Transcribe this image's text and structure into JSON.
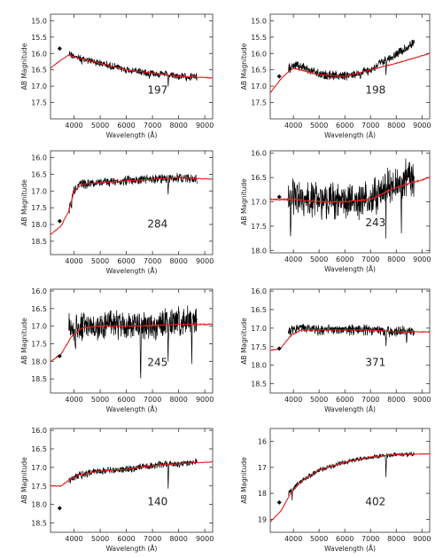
{
  "figure": {
    "panel_count": 8,
    "colors": {
      "data_line": "#000000",
      "model_line": "#e02020",
      "axes": "#333333",
      "photometry_point": "#000000"
    }
  },
  "chart_data": [
    {
      "type": "line",
      "id_label": "197",
      "xlabel": "Wavelength (Å)",
      "ylabel": "AB Magnitude",
      "xlim": [
        3100,
        9300
      ],
      "ylim": [
        18.0,
        14.8
      ],
      "xticks": [
        4000,
        5000,
        6000,
        7000,
        8000,
        9000
      ],
      "yticks": [
        15.0,
        15.5,
        16.0,
        16.5,
        17.0,
        17.5
      ],
      "ytick_labels": [
        "15.0",
        "15.5",
        "16.0",
        "16.5",
        "17.0",
        "17.5"
      ],
      "series": [
        {
          "role": "spectrum",
          "range": [
            3800,
            8700
          ],
          "x": [
            3800,
            4200,
            5000,
            6000,
            7000,
            8000,
            8700
          ],
          "y": [
            16.0,
            16.15,
            16.3,
            16.5,
            16.6,
            16.7,
            16.72
          ],
          "noise": 0.1,
          "dips": [
            [
              7600,
              0.35
            ],
            [
              6870,
              0.15
            ],
            [
              4300,
              0.15
            ]
          ]
        },
        {
          "role": "model",
          "range": [
            3100,
            9300
          ],
          "x": [
            3100,
            3500,
            3800,
            4200,
            5000,
            6000,
            7000,
            8000,
            9300
          ],
          "y": [
            16.45,
            16.2,
            16.05,
            16.15,
            16.3,
            16.5,
            16.6,
            16.7,
            16.75
          ],
          "noise": 0.01
        },
        {
          "role": "photometry",
          "x": [
            3450
          ],
          "y": [
            15.85
          ]
        }
      ]
    },
    {
      "type": "line",
      "id_label": "198",
      "xlabel": "Wavelength (Å)",
      "ylabel": "AB Magnitude",
      "xlim": [
        3100,
        9300
      ],
      "ylim": [
        18.0,
        14.8
      ],
      "xticks": [
        4000,
        5000,
        6000,
        7000,
        8000,
        9000
      ],
      "yticks": [
        15.0,
        15.5,
        16.0,
        16.5,
        17.0,
        17.5
      ],
      "ytick_labels": [
        "15.0",
        "15.5",
        "16.0",
        "16.5",
        "17.0",
        "17.5"
      ],
      "series": [
        {
          "role": "spectrum",
          "range": [
            3800,
            8700
          ],
          "x": [
            3800,
            4200,
            5000,
            6000,
            7000,
            7500,
            8000,
            8700
          ],
          "y": [
            16.45,
            16.35,
            16.65,
            16.7,
            16.5,
            16.25,
            16.0,
            15.7
          ],
          "noise": 0.12,
          "dips": [
            [
              7600,
              0.4
            ],
            [
              6600,
              0.2
            ],
            [
              4200,
              0.2
            ]
          ]
        },
        {
          "role": "model",
          "range": [
            3100,
            9300
          ],
          "x": [
            3100,
            3600,
            4000,
            5000,
            6000,
            7000,
            8000,
            9300
          ],
          "y": [
            17.2,
            16.7,
            16.45,
            16.65,
            16.7,
            16.5,
            16.3,
            16.0
          ],
          "noise": 0.01
        },
        {
          "role": "photometry",
          "x": [
            3450
          ],
          "y": [
            16.7
          ]
        }
      ]
    },
    {
      "type": "line",
      "id_label": "284",
      "xlabel": "Wavelength (Å)",
      "ylabel": "AB Magnitude",
      "xlim": [
        3100,
        9300
      ],
      "ylim": [
        18.9,
        15.8
      ],
      "xticks": [
        4000,
        5000,
        6000,
        7000,
        8000,
        9000
      ],
      "yticks": [
        16.0,
        16.5,
        17.0,
        17.5,
        18.0,
        18.5
      ],
      "ytick_labels": [
        "16.0",
        "16.5",
        "17.0",
        "17.5",
        "18.0",
        "18.5"
      ],
      "series": [
        {
          "role": "spectrum",
          "range": [
            3800,
            8700
          ],
          "x": [
            3800,
            3950,
            4200,
            5000,
            6000,
            7000,
            8000,
            8700
          ],
          "y": [
            17.6,
            17.05,
            16.8,
            16.75,
            16.7,
            16.65,
            16.6,
            16.65
          ],
          "noise": 0.12,
          "dips": [
            [
              7600,
              0.45
            ],
            [
              3900,
              0.3
            ]
          ]
        },
        {
          "role": "model",
          "range": [
            3100,
            9300
          ],
          "x": [
            3100,
            3500,
            3800,
            4000,
            4300,
            5000,
            6000,
            7000,
            8000,
            9300
          ],
          "y": [
            18.3,
            18.05,
            17.6,
            17.0,
            16.8,
            16.75,
            16.7,
            16.65,
            16.6,
            16.65
          ],
          "noise": 0.01
        },
        {
          "role": "photometry",
          "x": [
            3450
          ],
          "y": [
            17.9
          ]
        }
      ]
    },
    {
      "type": "line",
      "id_label": "243",
      "xlabel": "Wavelength (Å)",
      "ylabel": "AB Magnitude",
      "xlim": [
        3100,
        9300
      ],
      "ylim": [
        18.05,
        15.95
      ],
      "xticks": [
        4000,
        5000,
        6000,
        7000,
        8000,
        9000
      ],
      "yticks": [
        16.0,
        16.5,
        17.0,
        17.5,
        18.0
      ],
      "ytick_labels": [
        "16.0",
        "16.5",
        "17.0",
        "17.5",
        "18.0"
      ],
      "series": [
        {
          "role": "spectrum",
          "range": [
            3800,
            8700
          ],
          "x": [
            3800,
            4200,
            5000,
            6000,
            7000,
            7500,
            8000,
            8700
          ],
          "y": [
            16.9,
            16.9,
            17.0,
            17.0,
            16.95,
            16.8,
            16.6,
            16.5
          ],
          "noise": 0.32,
          "dips": [
            [
              7600,
              0.8
            ],
            [
              8200,
              0.9
            ],
            [
              3900,
              0.9
            ]
          ]
        },
        {
          "role": "model",
          "range": [
            3100,
            9300
          ],
          "x": [
            3100,
            3700,
            4000,
            5000,
            6000,
            7000,
            8000,
            9300
          ],
          "y": [
            16.95,
            16.95,
            16.95,
            17.0,
            17.0,
            16.95,
            16.7,
            16.5
          ],
          "noise": 0.015
        },
        {
          "role": "photometry",
          "x": [
            3450
          ],
          "y": [
            16.9
          ]
        }
      ]
    },
    {
      "type": "line",
      "id_label": "245",
      "xlabel": "Wavelength (Å)",
      "ylabel": "AB Magnitude",
      "xlim": [
        3100,
        9300
      ],
      "ylim": [
        18.9,
        15.95
      ],
      "xticks": [
        4000,
        5000,
        6000,
        7000,
        8000,
        9000
      ],
      "yticks": [
        16.0,
        16.5,
        17.0,
        17.5,
        18.0,
        18.5
      ],
      "ytick_labels": [
        "16.0",
        "16.5",
        "17.0",
        "17.5",
        "18.0",
        "18.5"
      ],
      "series": [
        {
          "role": "spectrum",
          "range": [
            3800,
            8700
          ],
          "x": [
            3800,
            4200,
            5000,
            6000,
            7000,
            8000,
            8700
          ],
          "y": [
            17.1,
            17.0,
            17.0,
            17.0,
            16.95,
            16.9,
            16.85
          ],
          "noise": 0.35,
          "dips": [
            [
              6550,
              1.6
            ],
            [
              7600,
              1.2
            ],
            [
              8500,
              1.4
            ],
            [
              4050,
              0.8
            ]
          ]
        },
        {
          "role": "model",
          "range": [
            3100,
            9300
          ],
          "x": [
            3100,
            3500,
            3900,
            4300,
            5000,
            6000,
            7000,
            8000,
            9300
          ],
          "y": [
            18.0,
            17.8,
            17.3,
            17.05,
            17.0,
            17.0,
            16.98,
            16.95,
            16.95
          ],
          "noise": 0.015
        },
        {
          "role": "photometry",
          "x": [
            3450
          ],
          "y": [
            17.85
          ]
        }
      ]
    },
    {
      "type": "line",
      "id_label": "371",
      "xlabel": "Wavelength (Å)",
      "ylabel": "AB Magnitude",
      "xlim": [
        3100,
        9300
      ],
      "ylim": [
        18.75,
        15.95
      ],
      "xticks": [
        4000,
        5000,
        6000,
        7000,
        8000,
        9000
      ],
      "yticks": [
        16.0,
        16.5,
        17.0,
        17.5,
        18.0,
        18.5
      ],
      "ytick_labels": [
        "16.0",
        "16.5",
        "17.0",
        "17.5",
        "18.0",
        "18.5"
      ],
      "series": [
        {
          "role": "spectrum",
          "range": [
            3800,
            8700
          ],
          "x": [
            3800,
            4200,
            5000,
            6000,
            7000,
            8000,
            8700
          ],
          "y": [
            17.1,
            17.0,
            17.05,
            17.05,
            17.05,
            17.1,
            17.05
          ],
          "noise": 0.12,
          "dips": [
            [
              7600,
              0.35
            ],
            [
              8400,
              0.3
            ]
          ]
        },
        {
          "role": "model",
          "range": [
            3100,
            9300
          ],
          "x": [
            3100,
            3500,
            3900,
            4300,
            5000,
            6000,
            7000,
            8000,
            9300
          ],
          "y": [
            17.6,
            17.55,
            17.2,
            17.05,
            17.05,
            17.05,
            17.05,
            17.1,
            17.1
          ],
          "noise": 0.01
        },
        {
          "role": "photometry",
          "x": [
            3450
          ],
          "y": [
            17.55
          ]
        }
      ]
    },
    {
      "type": "line",
      "id_label": "140",
      "xlabel": "Wavelength (Å)",
      "ylabel": "AB Magnitude",
      "xlim": [
        3100,
        9300
      ],
      "ylim": [
        18.75,
        15.95
      ],
      "xticks": [
        4000,
        5000,
        6000,
        7000,
        8000,
        9000
      ],
      "yticks": [
        16.0,
        16.5,
        17.0,
        17.5,
        18.0,
        18.5
      ],
      "ytick_labels": [
        "16.0",
        "16.5",
        "17.0",
        "17.5",
        "18.0",
        "18.5"
      ],
      "series": [
        {
          "role": "spectrum",
          "range": [
            3800,
            8700
          ],
          "x": [
            3800,
            4200,
            5000,
            6000,
            7000,
            8000,
            8700
          ],
          "y": [
            17.35,
            17.2,
            17.1,
            17.05,
            16.95,
            16.9,
            16.85
          ],
          "noise": 0.08,
          "dips": [
            [
              7600,
              0.6
            ],
            [
              4300,
              0.15
            ]
          ]
        },
        {
          "role": "model",
          "range": [
            3100,
            9300
          ],
          "x": [
            3100,
            3500,
            3800,
            4200,
            5000,
            6000,
            7000,
            8000,
            9300
          ],
          "y": [
            17.5,
            17.5,
            17.35,
            17.2,
            17.1,
            17.05,
            16.95,
            16.9,
            16.85
          ],
          "noise": 0.01
        },
        {
          "role": "photometry",
          "x": [
            3450
          ],
          "y": [
            18.1
          ]
        }
      ]
    },
    {
      "type": "line",
      "id_label": "402",
      "xlabel": "Wavelength (Å)",
      "ylabel": "AB Magnitude",
      "xlim": [
        3100,
        9300
      ],
      "ylim": [
        19.5,
        15.5
      ],
      "xticks": [
        4000,
        5000,
        6000,
        7000,
        8000,
        9000
      ],
      "yticks": [
        16,
        17,
        18,
        19
      ],
      "ytick_labels": [
        "16",
        "17",
        "18",
        "19"
      ],
      "series": [
        {
          "role": "spectrum",
          "range": [
            3800,
            8700
          ],
          "x": [
            3800,
            4200,
            5000,
            6000,
            7000,
            8000,
            8700
          ],
          "y": [
            18.0,
            17.6,
            17.1,
            16.8,
            16.6,
            16.5,
            16.5
          ],
          "noise": 0.08,
          "dips": [
            [
              7600,
              0.8
            ],
            [
              3950,
              0.4
            ]
          ]
        },
        {
          "role": "model",
          "range": [
            3100,
            9300
          ],
          "x": [
            3100,
            3500,
            3900,
            4300,
            5000,
            6000,
            7000,
            8000,
            9300
          ],
          "y": [
            19.1,
            18.7,
            18.0,
            17.55,
            17.1,
            16.8,
            16.6,
            16.5,
            16.48
          ],
          "noise": 0.01
        },
        {
          "role": "photometry",
          "x": [
            3450
          ],
          "y": [
            18.35
          ]
        }
      ]
    }
  ]
}
